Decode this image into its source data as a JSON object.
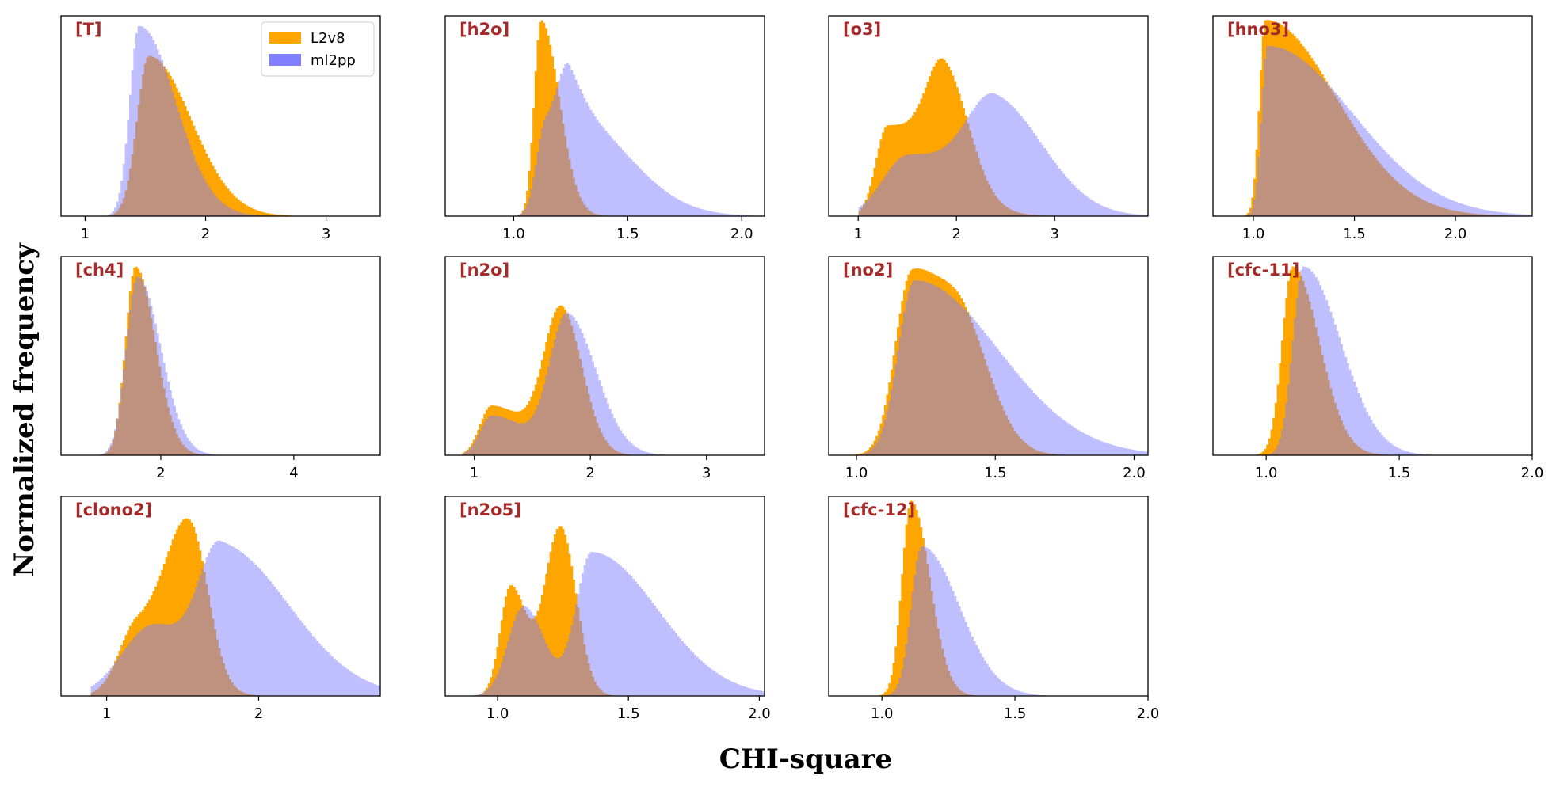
{
  "figure": {
    "xlabel": "CHI-square",
    "ylabel": "Normalized frequency",
    "colors": {
      "L2v8": "#ffa500",
      "ml2pp": "#7f7fff",
      "overlap": "#7f507f",
      "title": "#a52a2a"
    }
  },
  "chart_data": [
    {
      "type": "histogram",
      "title": "[T]",
      "xlim": [
        0.8,
        3.45
      ],
      "xticks": [
        1,
        2,
        3
      ],
      "xtick_labels": [
        "1",
        "2",
        "3"
      ],
      "legend": {
        "placement": "top-right",
        "entries": [
          "L2v8",
          "ml2pp"
        ]
      },
      "series": [
        {
          "name": "L2v8",
          "peaks": [
            [
              1.53,
              0.8,
              0.1,
              0.35
            ]
          ],
          "range": [
            1.1,
            3.45
          ]
        },
        {
          "name": "ml2pp",
          "peaks": [
            [
              1.45,
              0.95,
              0.08,
              0.3
            ]
          ],
          "range": [
            1.0,
            3.45
          ]
        }
      ]
    },
    {
      "type": "histogram",
      "title": "[h2o]",
      "xlim": [
        0.7,
        2.1
      ],
      "xticks": [
        1.0,
        1.5,
        2.0
      ],
      "xtick_labels": [
        "1.0",
        "1.5",
        "2.0"
      ],
      "series": [
        {
          "name": "L2v8",
          "peaks": [
            [
              1.12,
              0.98,
              0.03,
              0.08
            ]
          ],
          "range": [
            0.95,
            2.1
          ]
        },
        {
          "name": "ml2pp",
          "peaks": [
            [
              1.14,
              0.45,
              0.04,
              0.1
            ],
            [
              1.25,
              0.5,
              0.05,
              0.25
            ]
          ],
          "range": [
            0.95,
            2.1
          ]
        }
      ]
    },
    {
      "type": "histogram",
      "title": "[o3]",
      "xlim": [
        0.7,
        3.95
      ],
      "xticks": [
        1,
        2,
        3
      ],
      "xtick_labels": [
        "1",
        "2",
        "3"
      ],
      "series": [
        {
          "name": "L2v8",
          "peaks": [
            [
              1.3,
              0.45,
              0.12,
              0.5
            ],
            [
              1.88,
              0.55,
              0.18,
              0.25
            ]
          ],
          "range": [
            1.0,
            3.95
          ]
        },
        {
          "name": "ml2pp",
          "peaks": [
            [
              1.5,
              0.3,
              0.25,
              0.5
            ],
            [
              2.4,
              0.55,
              0.3,
              0.5
            ]
          ],
          "range": [
            1.0,
            3.95
          ]
        }
      ]
    },
    {
      "type": "histogram",
      "title": "[hno3]",
      "xlim": [
        0.8,
        2.38
      ],
      "xticks": [
        1.0,
        1.5,
        2.0
      ],
      "xtick_labels": [
        "1.0",
        "1.5",
        "2.0"
      ],
      "series": [
        {
          "name": "L2v8",
          "peaks": [
            [
              1.06,
              0.98,
              0.03,
              0.35
            ]
          ],
          "range": [
            0.9,
            2.38
          ]
        },
        {
          "name": "ml2pp",
          "peaks": [
            [
              1.07,
              0.85,
              0.03,
              0.42
            ]
          ],
          "range": [
            0.9,
            2.38
          ]
        }
      ]
    },
    {
      "type": "histogram",
      "title": "[ch4]",
      "xlim": [
        0.5,
        5.3
      ],
      "xticks": [
        2,
        4
      ],
      "xtick_labels": [
        "2",
        "4"
      ],
      "series": [
        {
          "name": "L2v8",
          "peaks": [
            [
              1.62,
              0.95,
              0.15,
              0.3
            ]
          ],
          "range": [
            0.6,
            5.3
          ]
        },
        {
          "name": "ml2pp",
          "peaks": [
            [
              1.65,
              0.9,
              0.17,
              0.35
            ]
          ],
          "range": [
            0.6,
            5.3
          ]
        }
      ]
    },
    {
      "type": "histogram",
      "title": "[n2o]",
      "xlim": [
        0.75,
        3.5
      ],
      "xticks": [
        1,
        2,
        3
      ],
      "xtick_labels": [
        "1",
        "2",
        "3"
      ],
      "series": [
        {
          "name": "L2v8",
          "peaks": [
            [
              1.15,
              0.25,
              0.1,
              0.3
            ],
            [
              1.75,
              0.72,
              0.15,
              0.18
            ]
          ],
          "range": [
            0.9,
            3.5
          ]
        },
        {
          "name": "ml2pp",
          "peaks": [
            [
              1.15,
              0.2,
              0.1,
              0.3
            ],
            [
              1.8,
              0.7,
              0.15,
              0.25
            ]
          ],
          "range": [
            0.9,
            3.5
          ]
        }
      ]
    },
    {
      "type": "histogram",
      "title": "[no2]",
      "xlim": [
        0.9,
        2.05
      ],
      "xticks": [
        1.0,
        1.5,
        2.0
      ],
      "xtick_labels": [
        "1.0",
        "1.5",
        "2.0"
      ],
      "series": [
        {
          "name": "L2v8",
          "peaks": [
            [
              1.2,
              0.92,
              0.06,
              0.15
            ],
            [
              1.4,
              0.35,
              0.08,
              0.1
            ]
          ],
          "range": [
            0.95,
            2.05
          ]
        },
        {
          "name": "ml2pp",
          "peaks": [
            [
              1.21,
              0.88,
              0.06,
              0.3
            ]
          ],
          "range": [
            0.95,
            2.05
          ]
        }
      ]
    },
    {
      "type": "histogram",
      "title": "[cfc-11]",
      "xlim": [
        0.8,
        2.0
      ],
      "xticks": [
        1.0,
        1.5,
        2.0
      ],
      "xtick_labels": [
        "1.0",
        "1.5",
        "2.0"
      ],
      "series": [
        {
          "name": "L2v8",
          "peaks": [
            [
              1.1,
              0.95,
              0.04,
              0.1
            ]
          ],
          "range": [
            0.9,
            2.0
          ]
        },
        {
          "name": "ml2pp",
          "peaks": [
            [
              1.14,
              0.95,
              0.04,
              0.14
            ]
          ],
          "range": [
            0.9,
            2.0
          ]
        }
      ]
    },
    {
      "type": "histogram",
      "title": "[clono2]",
      "xlim": [
        0.7,
        2.8
      ],
      "xticks": [
        1,
        2
      ],
      "xtick_labels": [
        "1",
        "2"
      ],
      "series": [
        {
          "name": "L2v8",
          "peaks": [
            [
              1.2,
              0.35,
              0.12,
              0.25
            ],
            [
              1.55,
              0.75,
              0.15,
              0.12
            ]
          ],
          "range": [
            0.9,
            2.8
          ]
        },
        {
          "name": "ml2pp",
          "peaks": [
            [
              1.3,
              0.35,
              0.2,
              0.2
            ],
            [
              1.75,
              0.75,
              0.15,
              0.45
            ]
          ],
          "range": [
            0.9,
            2.8
          ]
        }
      ]
    },
    {
      "type": "histogram",
      "title": "[n2o5]",
      "xlim": [
        0.8,
        2.02
      ],
      "xticks": [
        1.0,
        1.5,
        2.0
      ],
      "xtick_labels": [
        "1.0",
        "1.5",
        "2.0"
      ],
      "series": [
        {
          "name": "L2v8",
          "peaks": [
            [
              1.05,
              0.55,
              0.04,
              0.06
            ],
            [
              1.24,
              0.85,
              0.06,
              0.06
            ]
          ],
          "range": [
            0.9,
            2.02
          ]
        },
        {
          "name": "ml2pp",
          "peaks": [
            [
              1.1,
              0.45,
              0.06,
              0.08
            ],
            [
              1.36,
              0.72,
              0.06,
              0.25
            ]
          ],
          "range": [
            0.9,
            2.02
          ]
        }
      ]
    },
    {
      "type": "histogram",
      "title": "[cfc-12]",
      "xlim": [
        0.8,
        2.0
      ],
      "xticks": [
        1.0,
        1.5,
        2.0
      ],
      "xtick_labels": [
        "1.0",
        "1.5",
        "2.0"
      ],
      "series": [
        {
          "name": "L2v8",
          "peaks": [
            [
              1.11,
              0.98,
              0.035,
              0.07
            ]
          ],
          "range": [
            0.9,
            2.0
          ]
        },
        {
          "name": "ml2pp",
          "peaks": [
            [
              1.15,
              0.75,
              0.04,
              0.14
            ]
          ],
          "range": [
            0.9,
            2.0
          ]
        }
      ]
    }
  ]
}
